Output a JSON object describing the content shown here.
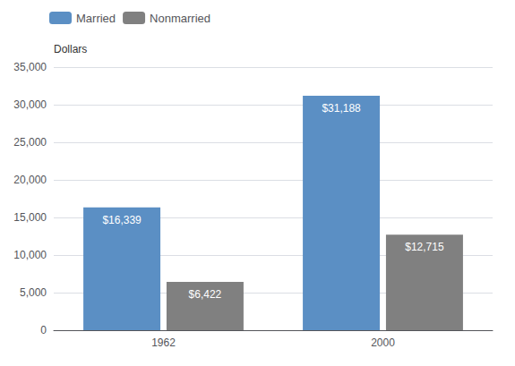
{
  "chart_data": {
    "type": "bar",
    "categories": [
      "1962",
      "2000"
    ],
    "series": [
      {
        "name": "Married",
        "color": "#5b8fc4",
        "values": [
          16339,
          31188
        ],
        "value_labels": [
          "$16,339",
          "$31,188"
        ]
      },
      {
        "name": "Nonmarried",
        "color": "#808080",
        "values": [
          6422,
          12715
        ],
        "value_labels": [
          "$6,422",
          "$12,715"
        ]
      }
    ],
    "ylabel": "Dollars",
    "ylim": [
      0,
      35000
    ],
    "yticks": [
      0,
      {
        "value": 5000,
        "label": "5,000"
      },
      {
        "value": 10000,
        "label": "10,000"
      },
      {
        "value": 15000,
        "label": "15,000"
      },
      {
        "value": 20000,
        "label": "20,000"
      },
      {
        "value": 25000,
        "label": "25,000"
      },
      {
        "value": 30000,
        "label": "30,000"
      },
      {
        "value": 35000,
        "label": "35,000"
      }
    ],
    "grid": true,
    "legend": "upper left",
    "data_labels": true
  }
}
